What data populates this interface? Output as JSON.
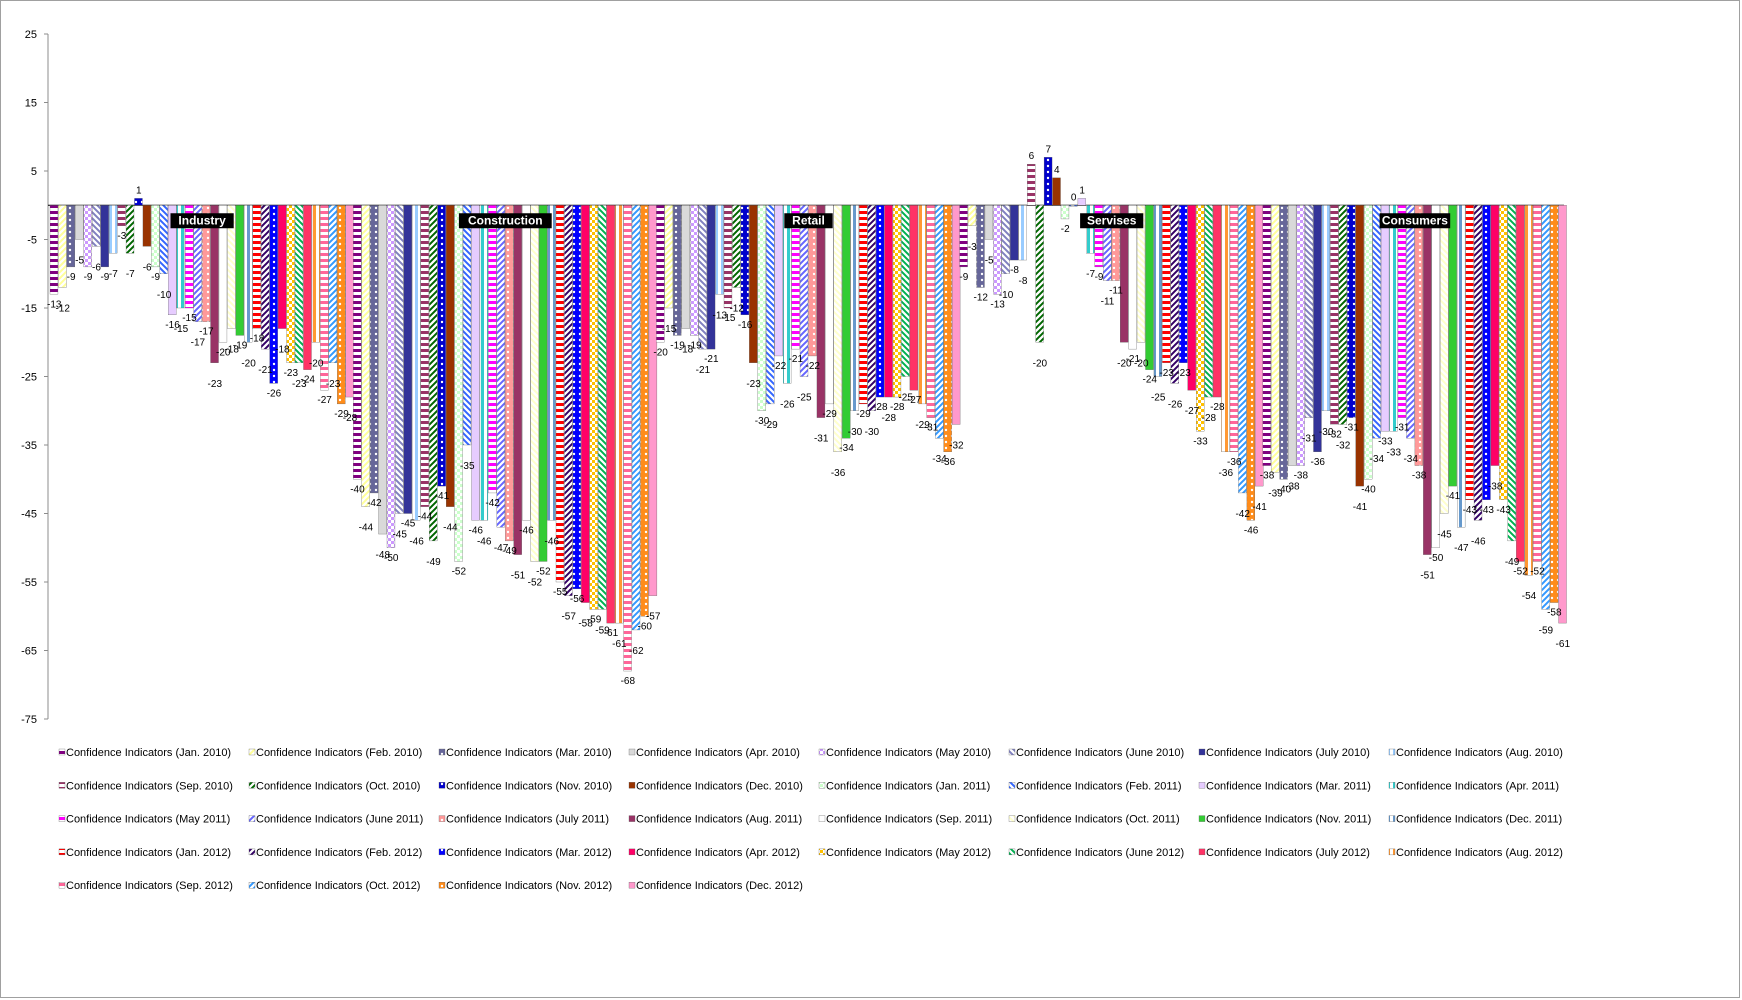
{
  "chart_data": {
    "type": "bar",
    "categories": [
      "Industry",
      "Construction",
      "Retail",
      "Servises",
      "Consumers"
    ],
    "ylim": [
      -75,
      25
    ],
    "yticks": [
      25,
      15,
      5,
      -5,
      -15,
      -25,
      -35,
      -45,
      -55,
      -65,
      -75
    ],
    "grid": false,
    "legend_position": "bottom",
    "series": [
      {
        "name": "Confidence Indicators (Jan. 2010)",
        "values": [
          -13,
          -40,
          -20,
          -9,
          -38
        ],
        "color": "#800080"
      },
      {
        "name": "Confidence Indicators (Feb. 2010)",
        "values": [
          -12,
          -44,
          -15,
          -3,
          -39
        ],
        "color": "#ffff99"
      },
      {
        "name": "Confidence Indicators (Mar. 2010)",
        "values": [
          -9,
          -42,
          -19,
          -12,
          -40
        ],
        "color": "#666699"
      },
      {
        "name": "Confidence Indicators (Apr. 2010)",
        "values": [
          -5,
          -48,
          -18,
          -5,
          -38
        ],
        "color": "#d9d9d9"
      },
      {
        "name": "Confidence Indicators (May 2010)",
        "values": [
          -9,
          -50,
          -19,
          -13,
          -38
        ],
        "color": "#cc99ff"
      },
      {
        "name": "Confidence Indicators (June 2010)",
        "values": [
          -6,
          -45,
          -21,
          -10,
          -31
        ],
        "color": "#8080c0"
      },
      {
        "name": "Confidence Indicators (July 2010)",
        "values": [
          -9,
          -45,
          -21,
          -8,
          -36
        ],
        "color": "#333399"
      },
      {
        "name": "Confidence Indicators (Aug. 2010)",
        "values": [
          -7,
          -46,
          -13,
          -8,
          -30
        ],
        "color": "#99ccff"
      },
      {
        "name": "Confidence Indicators (Sep. 2010)",
        "values": [
          -3,
          -44,
          -15,
          6,
          -32
        ],
        "color": "#993366"
      },
      {
        "name": "Confidence Indicators (Oct. 2010)",
        "values": [
          -7,
          -49,
          -12,
          -20,
          -32
        ],
        "color": "#006600"
      },
      {
        "name": "Confidence Indicators (Nov. 2010)",
        "values": [
          1,
          -41,
          -16,
          7,
          -31
        ],
        "color": "#0000cc"
      },
      {
        "name": "Confidence Indicators (Dec. 2010)",
        "values": [
          -6,
          -44,
          -23,
          4,
          -41
        ],
        "color": "#993300"
      },
      {
        "name": "Confidence Indicators (Jan. 2011)",
        "values": [
          -9,
          -52,
          -30,
          -2,
          -40
        ],
        "color": "#ccffcc"
      },
      {
        "name": "Confidence Indicators (Feb. 2011)",
        "values": [
          -10,
          -35,
          -29,
          0,
          -34
        ],
        "color": "#3366ff"
      },
      {
        "name": "Confidence Indicators (Mar. 2011)",
        "values": [
          -16,
          -46,
          -22,
          1,
          -33
        ],
        "color": "#e6ccff"
      },
      {
        "name": "Confidence Indicators (Apr. 2011)",
        "values": [
          -15,
          -46,
          -26,
          -7,
          -33
        ],
        "color": "#33cccc"
      },
      {
        "name": "Confidence Indicators (May 2011)",
        "values": [
          -15,
          -42,
          -21,
          -9,
          -31
        ],
        "color": "#ff00ff"
      },
      {
        "name": "Confidence Indicators (June 2011)",
        "values": [
          -17,
          -47,
          -25,
          -11,
          -34
        ],
        "color": "#6666ff"
      },
      {
        "name": "Confidence Indicators (July 2011)",
        "values": [
          -17,
          -49,
          -22,
          -11,
          -38
        ],
        "color": "#ff9999"
      },
      {
        "name": "Confidence Indicators (Aug. 2011)",
        "values": [
          -23,
          -51,
          -31,
          -20,
          -51
        ],
        "color": "#993366"
      },
      {
        "name": "Confidence Indicators (Sep. 2011)",
        "values": [
          -20,
          -46,
          -29,
          -21,
          -50
        ],
        "color": "#ffffff"
      },
      {
        "name": "Confidence Indicators (Oct. 2011)",
        "values": [
          -18,
          -52,
          -36,
          -20,
          -45
        ],
        "color": "#ffffcc"
      },
      {
        "name": "Confidence Indicators (Nov. 2011)",
        "values": [
          -19,
          -52,
          -34,
          -24,
          -41
        ],
        "color": "#33cc33"
      },
      {
        "name": "Confidence Indicators (Dec. 2011)",
        "values": [
          -20,
          -46,
          -30,
          -25,
          -47
        ],
        "color": "#6699cc"
      },
      {
        "name": "Confidence Indicators (Jan. 2012)",
        "values": [
          -18,
          -55,
          -29,
          -23,
          -43
        ],
        "color": "#ff0000"
      },
      {
        "name": "Confidence Indicators (Feb. 2012)",
        "values": [
          -21,
          -57,
          -30,
          -26,
          -46
        ],
        "color": "#330066"
      },
      {
        "name": "Confidence Indicators (Mar. 2012)",
        "values": [
          -26,
          -56,
          -28,
          -23,
          -43
        ],
        "color": "#0000ff"
      },
      {
        "name": "Confidence Indicators (Apr. 2012)",
        "values": [
          -18,
          -58,
          -28,
          -27,
          -38
        ],
        "color": "#ff0066"
      },
      {
        "name": "Confidence Indicators (May 2012)",
        "values": [
          -23,
          -59,
          -28,
          -33,
          -43
        ],
        "color": "#ffc000"
      },
      {
        "name": "Confidence Indicators (June 2012)",
        "values": [
          -23,
          -59,
          -25,
          -28,
          -49
        ],
        "color": "#00b050"
      },
      {
        "name": "Confidence Indicators (July 2012)",
        "values": [
          -24,
          -61,
          -27,
          -28,
          -52
        ],
        "color": "#ff3366"
      },
      {
        "name": "Confidence Indicators (Aug. 2012)",
        "values": [
          -20,
          -61,
          -29,
          -36,
          -54
        ],
        "color": "#ff9933"
      },
      {
        "name": "Confidence Indicators (Sep. 2012)",
        "values": [
          -27,
          -68,
          -31,
          -36,
          -52
        ],
        "color": "#ff6699"
      },
      {
        "name": "Confidence Indicators (Oct. 2012)",
        "values": [
          -23,
          -62,
          -34,
          -42,
          -59
        ],
        "color": "#3399ff"
      },
      {
        "name": "Confidence Indicators (Nov. 2012)",
        "values": [
          -29,
          -60,
          -36,
          -46,
          -58
        ],
        "color": "#ff8c1a"
      },
      {
        "name": "Confidence Indicators (Dec. 2012)",
        "values": [
          -28,
          -57,
          -32,
          -41,
          -61
        ],
        "color": "#ff99cc"
      }
    ]
  }
}
